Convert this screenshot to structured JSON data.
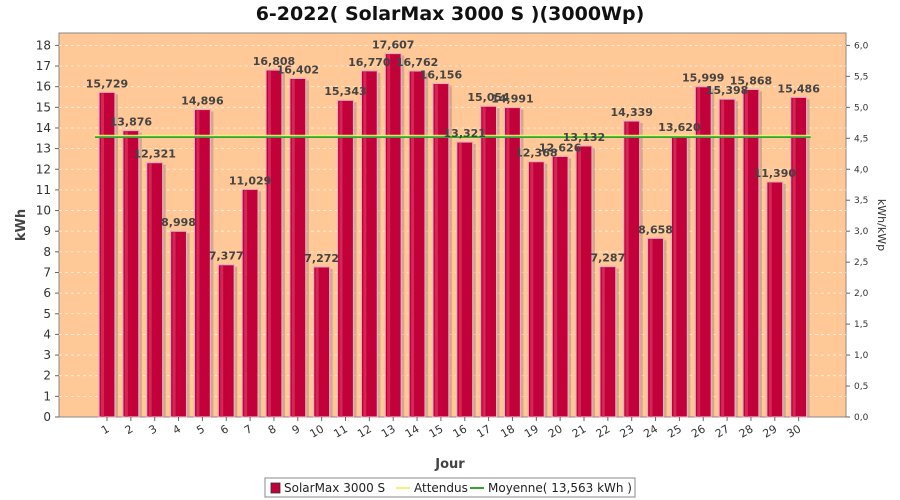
{
  "chart_data": {
    "type": "bar",
    "title": "6-2022( SolarMax 3000 S )(3000Wp)",
    "xlabel": "Jour",
    "ylabel": "kWh",
    "y2label": "kWh/kWp",
    "ylim": [
      0,
      18.6
    ],
    "y2lim": [
      0,
      6.2
    ],
    "yticks": [
      "0",
      "1",
      "2",
      "3",
      "4",
      "5",
      "6",
      "7",
      "8",
      "9",
      "10",
      "11",
      "12",
      "13",
      "14",
      "15",
      "16",
      "17",
      "18"
    ],
    "y2ticks": [
      "0,0",
      "0,5",
      "1,0",
      "1,5",
      "2,0",
      "2,5",
      "3,0",
      "3,5",
      "4,0",
      "4,5",
      "5,0",
      "5,5",
      "6,0"
    ],
    "categories": [
      "1",
      "2",
      "3",
      "4",
      "5",
      "6",
      "7",
      "8",
      "9",
      "10",
      "11",
      "12",
      "13",
      "14",
      "15",
      "16",
      "17",
      "18",
      "19",
      "20",
      "21",
      "22",
      "23",
      "24",
      "25",
      "26",
      "27",
      "28",
      "29",
      "30"
    ],
    "series": [
      {
        "name": "SolarMax 3000 S",
        "color": "#c2003a",
        "values": [
          15.729,
          13.876,
          12.321,
          8.998,
          14.896,
          7.377,
          11.029,
          16.808,
          16.402,
          7.272,
          15.343,
          16.77,
          17.607,
          16.762,
          16.156,
          13.321,
          15.054,
          14.991,
          12.368,
          12.626,
          13.132,
          7.287,
          14.339,
          8.658,
          13.62,
          15.999,
          15.398,
          15.868,
          11.39,
          15.486
        ],
        "labels": [
          "15,729",
          "13,876",
          "12,321",
          "8,998",
          "14,896",
          "7,377",
          "11,029",
          "16,808",
          "16,402",
          "7,272",
          "15,343",
          "16,770",
          "17,607",
          "16,762",
          "16,156",
          "13,321",
          "15,054",
          "14,991",
          "12,368",
          "12,626",
          "13,132",
          "7,287",
          "14,339",
          "8,658",
          "13,620",
          "15,999",
          "15,398",
          "15,868",
          "11,390",
          "15,486"
        ]
      }
    ],
    "reference_lines": [
      {
        "name": "Attendus",
        "color": "#f2f27a",
        "value": null
      },
      {
        "name": "Moyenne( 13,563 kWh )",
        "color": "#2ea82e",
        "value": 13.563
      }
    ],
    "background": "#ffc896",
    "grid": true,
    "legend_position": "bottom"
  }
}
